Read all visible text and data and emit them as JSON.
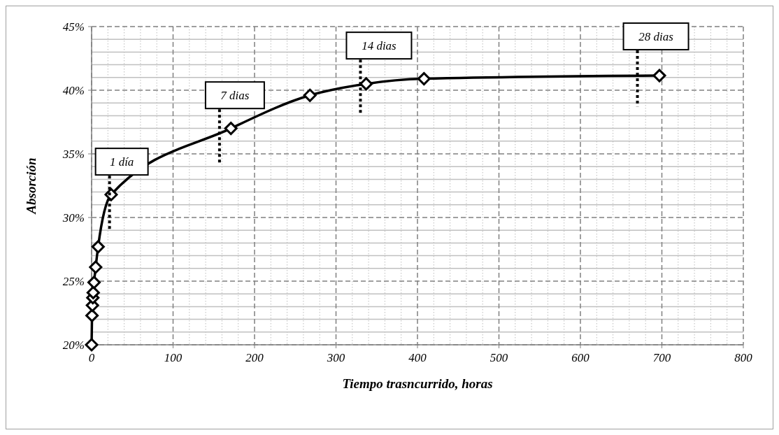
{
  "chart_data": {
    "type": "line",
    "xlabel": "Tiempo trasncurrido, horas",
    "ylabel": "Absorción",
    "x": [
      0,
      0.5,
      1,
      1.5,
      2,
      3,
      5,
      8,
      24,
      171,
      268,
      337,
      408,
      697
    ],
    "series": [
      {
        "color": "#000000",
        "values": [
          20,
          22.3,
          23.1,
          23.7,
          24.1,
          24.9,
          26.1,
          27.7,
          31.8,
          37.0,
          39.6,
          40.5,
          40.9,
          41.15
        ]
      }
    ],
    "xlim": [
      0,
      800
    ],
    "xticks": [
      0,
      100,
      200,
      300,
      400,
      500,
      600,
      700,
      800
    ],
    "ylim": [
      20,
      45
    ],
    "yticks": [
      {
        "value": 20,
        "label": "20%"
      },
      {
        "value": 25,
        "label": "25%"
      },
      {
        "value": 30,
        "label": "30%"
      },
      {
        "value": 35,
        "label": "35%"
      },
      {
        "value": 40,
        "label": "40%"
      },
      {
        "value": 45,
        "label": "45%"
      }
    ],
    "grid": true,
    "marker": "diamond",
    "line_style": "solid",
    "ref_lines": [
      {
        "axis": "x",
        "value": 22,
        "label": "1 día",
        "line_style": "dotted"
      },
      {
        "axis": "x",
        "value": 157,
        "label": "7 dias",
        "line_style": "dotted"
      },
      {
        "axis": "x",
        "value": 330,
        "label": "14 dias",
        "line_style": "dotted"
      },
      {
        "axis": "x",
        "value": 670,
        "label": "28 dias",
        "line_style": "dotted"
      }
    ]
  }
}
